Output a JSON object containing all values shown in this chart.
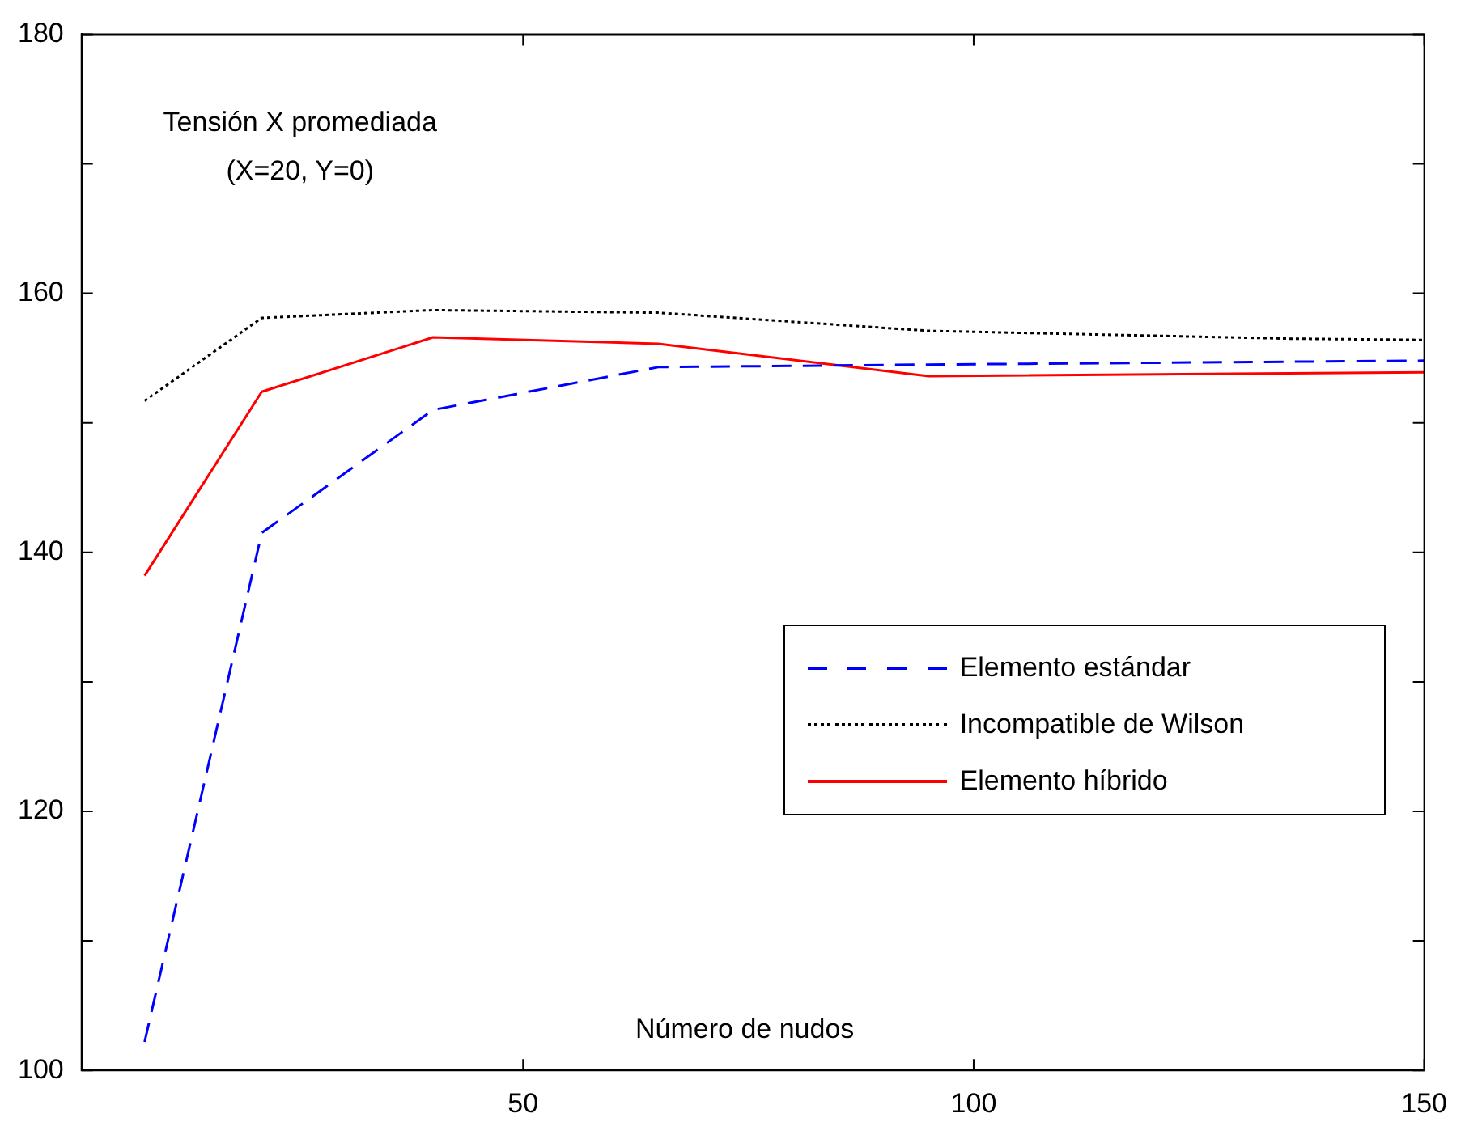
{
  "chart_data": {
    "type": "line",
    "xlabel": "Número de nudos",
    "annotations": [
      "Tensión X promediada",
      "(X=20, Y=0)"
    ],
    "xlim": [
      1,
      150
    ],
    "xticks": [
      50,
      100,
      150
    ],
    "ylim": [
      100,
      180
    ],
    "yticks": [
      100,
      {
        "value": 110,
        "label": null
      },
      120,
      {
        "value": 130,
        "label": null
      },
      140,
      {
        "value": 150,
        "label": null
      },
      160,
      {
        "value": 170,
        "label": null
      },
      180
    ],
    "grid": false,
    "legend": "right",
    "marker": "none",
    "series": [
      {
        "name": "Elemento estándar",
        "color": "#0000ff",
        "line_style": "dashed",
        "x": [
          8,
          21,
          40,
          65,
          95,
          150
        ],
        "values": [
          102.2,
          141.5,
          151.0,
          154.3,
          154.5,
          154.8
        ]
      },
      {
        "name": "Incompatible de Wilson",
        "color": "#000000",
        "line_style": "dotted",
        "x": [
          8,
          21,
          40,
          65,
          95,
          135,
          150
        ],
        "values": [
          151.7,
          158.1,
          158.7,
          158.5,
          157.1,
          156.5,
          156.4
        ]
      },
      {
        "name": "Elemento híbrido",
        "color": "#ff0000",
        "line_style": "solid",
        "x": [
          8,
          21,
          40,
          65,
          95,
          150
        ],
        "values": [
          138.2,
          152.4,
          156.6,
          156.1,
          153.6,
          153.9
        ]
      }
    ]
  }
}
